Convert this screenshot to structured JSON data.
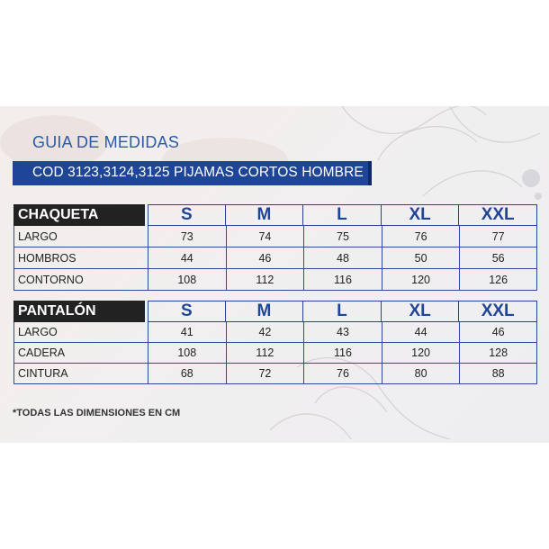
{
  "header": {
    "title": "GUIA DE MEDIDAS",
    "banner": "COD 3123,3124,3125 PIJAMAS CORTOS HOMBRE"
  },
  "sizes": [
    "S",
    "M",
    "L",
    "XL",
    "XXL"
  ],
  "tables": [
    {
      "label": "CHAQUETA",
      "rows": [
        {
          "label": "LARGO",
          "values": [
            "73",
            "74",
            "75",
            "76",
            "77"
          ]
        },
        {
          "label": "HOMBROS",
          "values": [
            "44",
            "46",
            "48",
            "50",
            "56"
          ]
        },
        {
          "label": "CONTORNO",
          "values": [
            "108",
            "112",
            "116",
            "120",
            "126"
          ]
        }
      ]
    },
    {
      "label": "PANTALÓN",
      "rows": [
        {
          "label": "LARGO",
          "values": [
            "41",
            "42",
            "43",
            "44",
            "46"
          ]
        },
        {
          "label": "CADERA",
          "values": [
            "108",
            "112",
            "116",
            "120",
            "128"
          ]
        },
        {
          "label": "CINTURA",
          "values": [
            "68",
            "72",
            "76",
            "80",
            "88"
          ]
        }
      ]
    }
  ],
  "footnote": "*TODAS LAS DIMENSIONES EN CM",
  "colors": {
    "accent": "#1f4596",
    "header_dark": "#222222",
    "border": "#2e4aa0"
  }
}
